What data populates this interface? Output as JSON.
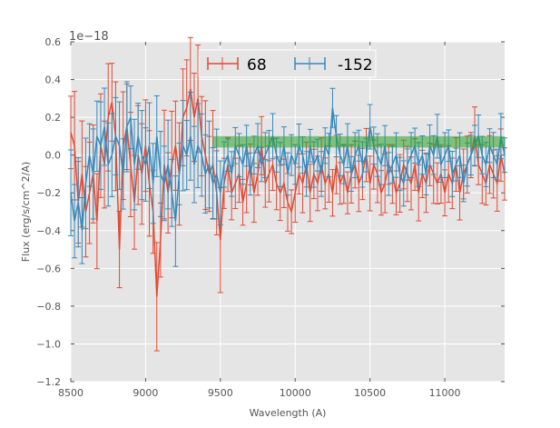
{
  "chart_data": {
    "type": "line",
    "subtype": "errorbar",
    "title": "",
    "xlabel": "Wavelength (A)",
    "ylabel": "Flux (erg/s/cm^2/A)",
    "offset_text": "1e−18",
    "xlim": [
      8500,
      11400
    ],
    "ylim": [
      -1.2,
      0.6
    ],
    "xticks": [
      8500,
      9000,
      9500,
      10000,
      10500,
      11000
    ],
    "xtick_labels": [
      "8500",
      "9000",
      "9500",
      "10000",
      "10500",
      "11000"
    ],
    "yticks": [
      0.6,
      0.4,
      0.2,
      0.0,
      -0.2,
      -0.4,
      -0.6,
      -0.8,
      -1.0,
      -1.2
    ],
    "ytick_labels": [
      "0.6",
      "0.4",
      "0.2",
      "0.0",
      "−0.2",
      "−0.4",
      "−0.6",
      "−0.8",
      "−1.0",
      "−1.2"
    ],
    "grid": true,
    "legend_position": "top-center",
    "x_start": 8500,
    "x_step": 25,
    "series": [
      {
        "name": "68",
        "color": "#E24A33",
        "yerr_segments": [
          {
            "x_from": 8500,
            "x_to": 9500,
            "yerr": 0.24
          },
          {
            "x_from": 9500,
            "x_to": 11400,
            "yerr": 0.13
          }
        ],
        "values": [
          0.12,
          0.05,
          -0.25,
          -0.1,
          -0.3,
          -0.2,
          -0.1,
          -0.35,
          0.05,
          -0.05,
          0.2,
          0.28,
          0.1,
          -0.5,
          0.05,
          0.15,
          -0.05,
          -0.25,
          0.0,
          -0.1,
          0.05,
          -0.15,
          -0.3,
          -0.75,
          -0.45,
          -0.05,
          -0.2,
          -0.05,
          0.05,
          -0.1,
          0.2,
          0.25,
          0.35,
          0.2,
          0.3,
          0.1,
          0.0,
          -0.1,
          -0.05,
          -0.2,
          -0.45,
          -0.15,
          -0.05,
          -0.2,
          -0.15,
          -0.1,
          -0.25,
          -0.15,
          -0.05,
          -0.2,
          -0.1,
          0.05,
          -0.15,
          -0.1,
          -0.05,
          -0.15,
          -0.2,
          -0.15,
          -0.25,
          -0.3,
          -0.2,
          -0.1,
          -0.15,
          -0.05,
          -0.2,
          -0.1,
          -0.15,
          -0.05,
          -0.15,
          -0.1,
          -0.2,
          -0.05,
          -0.15,
          -0.1,
          -0.2,
          -0.1,
          -0.05,
          -0.15,
          -0.1,
          0.0,
          -0.15,
          -0.05,
          -0.1,
          -0.2,
          -0.15,
          -0.05,
          -0.1,
          -0.2,
          -0.15,
          -0.05,
          -0.1,
          -0.15,
          -0.05,
          -0.2,
          -0.1,
          -0.15,
          -0.05,
          -0.1,
          -0.15,
          -0.1,
          -0.2,
          -0.1,
          -0.15,
          -0.05,
          -0.2,
          -0.1,
          -0.05,
          0.0,
          0.1,
          -0.05,
          -0.1,
          -0.15,
          -0.05,
          -0.1,
          -0.15,
          0.0,
          -0.1
        ]
      },
      {
        "name": "-152",
        "color": "#348ABD",
        "yerr_segments": [
          {
            "x_from": 8500,
            "x_to": 9500,
            "yerr": 0.2
          },
          {
            "x_from": 9500,
            "x_to": 11400,
            "yerr": 0.1
          }
        ],
        "values": [
          -0.2,
          -0.35,
          -0.25,
          -0.4,
          -0.15,
          0.0,
          -0.1,
          0.1,
          0.05,
          0.15,
          -0.05,
          0.0,
          0.1,
          0.05,
          -0.1,
          0.15,
          0.2,
          -0.05,
          0.1,
          0.0,
          -0.05,
          0.05,
          -0.15,
          0.1,
          -0.1,
          -0.15,
          -0.05,
          -0.2,
          -0.35,
          -0.1,
          0.05,
          0.0,
          0.1,
          -0.05,
          0.05,
          0.0,
          -0.1,
          -0.05,
          -0.15,
          -0.1,
          -0.2,
          -0.05,
          0.0,
          -0.1,
          0.05,
          0.0,
          -0.05,
          0.05,
          -0.1,
          0.0,
          0.05,
          -0.05,
          0.0,
          0.05,
          0.1,
          0.0,
          -0.05,
          0.05,
          -0.1,
          0.0,
          -0.05,
          0.05,
          0.0,
          -0.1,
          0.05,
          -0.05,
          0.0,
          -0.1,
          0.05,
          0.0,
          0.25,
          0.1,
          0.0,
          -0.05,
          0.05,
          -0.1,
          0.0,
          0.05,
          -0.05,
          0.0,
          0.15,
          0.05,
          0.0,
          -0.05,
          0.05,
          -0.1,
          -0.05,
          0.0,
          -0.1,
          -0.15,
          -0.05,
          0.0,
          0.05,
          -0.05,
          0.0,
          -0.1,
          0.05,
          0.0,
          0.1,
          -0.05,
          0.0,
          0.05,
          -0.1,
          -0.05,
          0.0,
          -0.15,
          -0.05,
          0.0,
          0.05,
          0.1,
          0.0,
          -0.05,
          0.05,
          0.0,
          -0.05,
          0.1,
          0.0
        ]
      }
    ],
    "band": {
      "x_from": 9450,
      "x_to": 11400,
      "y_from": 0.04,
      "y_to": 0.1,
      "color": "#2CA02C",
      "opacity": 0.55
    }
  }
}
